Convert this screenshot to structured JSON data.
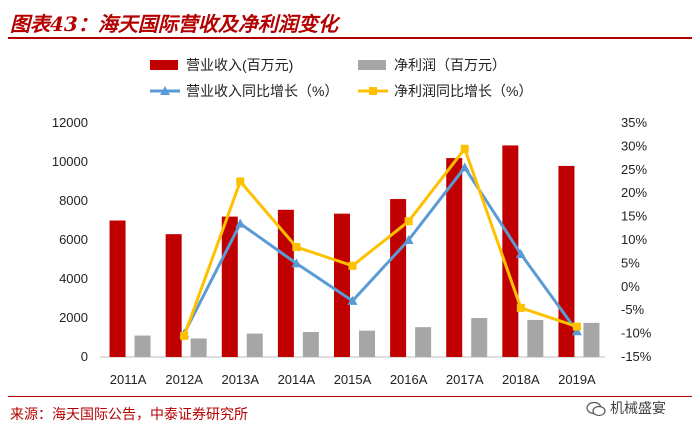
{
  "header": {
    "title": "图表43：海天国际营收及净利润变化"
  },
  "footer": {
    "source": "来源：海天国际公告，中泰证券研究所",
    "watermark": "机械盛宴"
  },
  "chart_data": {
    "type": "bar",
    "categories": [
      "2011A",
      "2012A",
      "2013A",
      "2014A",
      "2015A",
      "2016A",
      "2017A",
      "2018A",
      "2019A"
    ],
    "bar_series": [
      {
        "name": "营业收入(百万元)",
        "color": "#c00000",
        "values": [
          7000,
          6300,
          7200,
          7550,
          7350,
          8100,
          10200,
          10850,
          9800
        ]
      },
      {
        "name": "净利润（百万元）",
        "color": "#a6a6a6",
        "values": [
          1100,
          950,
          1200,
          1280,
          1350,
          1530,
          2000,
          1900,
          1750
        ]
      }
    ],
    "line_series": [
      {
        "name": "营业收入同比增长（%）",
        "color": "#5b9bd5",
        "values": [
          null,
          -10,
          13.5,
          5,
          -3,
          10,
          25.5,
          7,
          -9.5
        ]
      },
      {
        "name": "净利润同比增长（%）",
        "color": "#ffc000",
        "values": [
          null,
          -10.5,
          22.5,
          8.5,
          4.5,
          14,
          29.5,
          -4.5,
          -8.5
        ]
      }
    ],
    "y_left": {
      "ylim": [
        0,
        12000
      ],
      "ticks": [
        "0",
        "2000",
        "4000",
        "6000",
        "8000",
        "10000",
        "12000"
      ]
    },
    "y_right": {
      "ylim": [
        -15,
        35
      ],
      "ticks": [
        "-15%",
        "-10%",
        "-5%",
        "0%",
        "5%",
        "10%",
        "15%",
        "20%",
        "25%",
        "30%",
        "35%"
      ]
    },
    "legend_position": "top",
    "grid": false
  }
}
